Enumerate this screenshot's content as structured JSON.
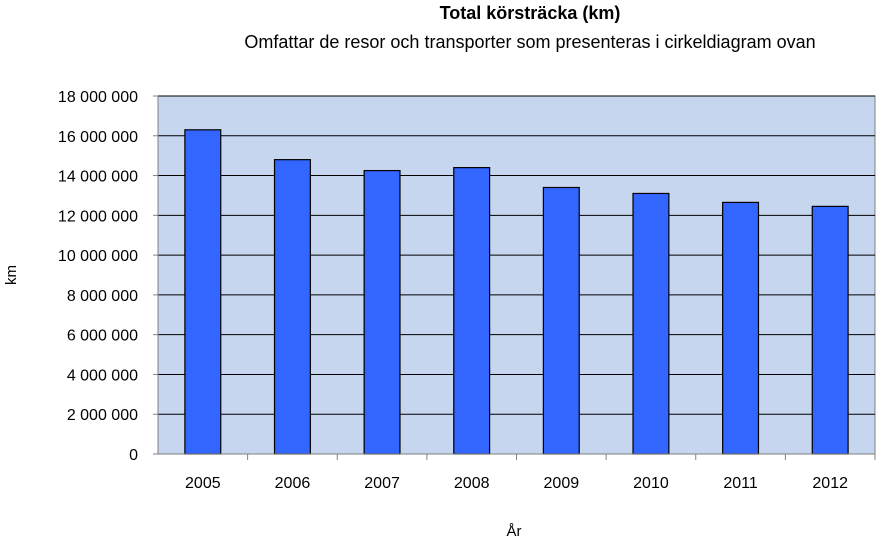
{
  "chart_data": {
    "type": "bar",
    "title": "Total körsträcka (km)",
    "subtitle": "Omfattar de resor och transporter som presenteras i cirkeldiagram ovan",
    "xlabel": "År",
    "ylabel": "km",
    "categories": [
      "2005",
      "2006",
      "2007",
      "2008",
      "2009",
      "2010",
      "2011",
      "2012"
    ],
    "values": [
      16300000,
      14800000,
      14250000,
      14400000,
      13400000,
      13100000,
      12650000,
      12450000
    ],
    "ylim": [
      0,
      18000000
    ],
    "yticks": [
      0,
      2000000,
      4000000,
      6000000,
      8000000,
      10000000,
      12000000,
      14000000,
      16000000,
      18000000
    ],
    "ytick_labels": [
      "0",
      "2 000 000",
      "4 000 000",
      "6 000 000",
      "8 000 000",
      "10 000 000",
      "12 000 000",
      "14 000 000",
      "16 000 000",
      "18 000 000"
    ],
    "grid": true,
    "legend": "none",
    "colors": {
      "bar": "#3366ff",
      "plot_background": "#c6d6ef",
      "gridline": "#000000"
    }
  }
}
